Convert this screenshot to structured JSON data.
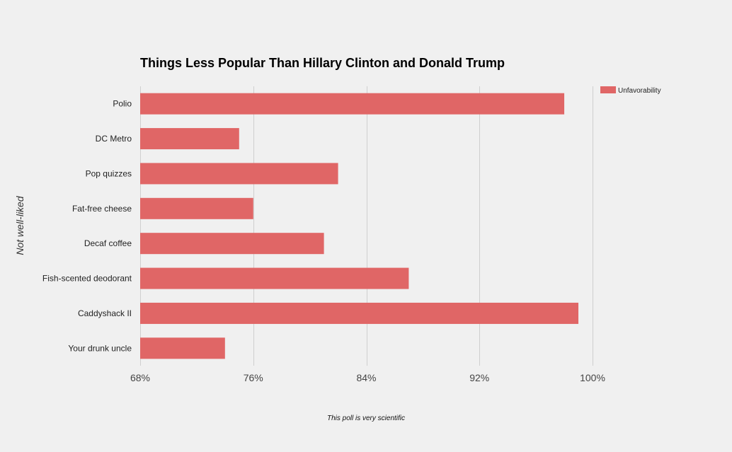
{
  "chart_data": {
    "type": "bar",
    "orientation": "horizontal",
    "title": "Things Less Popular Than Hillary Clinton and Donald Trump",
    "ylabel": "Not well-liked",
    "xlabel": "",
    "footnote": "This poll is very scientific",
    "categories": [
      "Polio",
      "DC Metro",
      "Pop quizzes",
      "Fat-free cheese",
      "Decaf coffee",
      "Fish-scented deodorant",
      "Caddyshack II",
      "Your drunk uncle"
    ],
    "series": [
      {
        "name": "Unfavorability",
        "color": "#e06666",
        "values": [
          98,
          75,
          82,
          76,
          81,
          87,
          99,
          74
        ]
      }
    ],
    "xlim": [
      68,
      100
    ],
    "xticks": [
      68,
      76,
      84,
      92,
      100
    ],
    "xtick_labels": [
      "68%",
      "76%",
      "84%",
      "92%",
      "100%"
    ],
    "grid": true,
    "legend_position": "top-right"
  }
}
